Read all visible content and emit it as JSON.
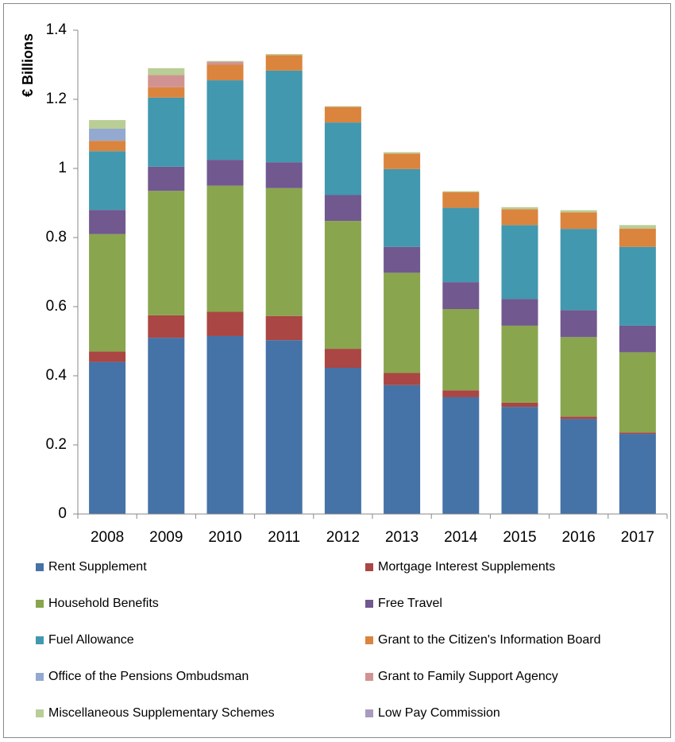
{
  "chart_data": {
    "type": "stacked_bar",
    "y_label": "€ Billions",
    "categories": [
      "2008",
      "2009",
      "2010",
      "2011",
      "2012",
      "2013",
      "2014",
      "2015",
      "2016",
      "2017"
    ],
    "ylim": [
      0,
      1.4
    ],
    "yticks": [
      0,
      0.2,
      0.4,
      0.6,
      0.8,
      1,
      1.2,
      1.4
    ],
    "series": [
      {
        "name": "Rent Supplement",
        "color": "#4572a7",
        "values": [
          0.44,
          0.51,
          0.515,
          0.503,
          0.423,
          0.373,
          0.338,
          0.31,
          0.275,
          0.232
        ]
      },
      {
        "name": "Mortgage Interest Supplements",
        "color": "#aa4643",
        "values": [
          0.03,
          0.065,
          0.07,
          0.07,
          0.055,
          0.035,
          0.02,
          0.012,
          0.007,
          0.004
        ]
      },
      {
        "name": "Household Benefits",
        "color": "#89a54e",
        "values": [
          0.34,
          0.36,
          0.365,
          0.37,
          0.37,
          0.29,
          0.235,
          0.223,
          0.23,
          0.232
        ]
      },
      {
        "name": "Free Travel",
        "color": "#71588f",
        "values": [
          0.07,
          0.07,
          0.075,
          0.075,
          0.075,
          0.075,
          0.078,
          0.077,
          0.078,
          0.077
        ]
      },
      {
        "name": "Fuel Allowance",
        "color": "#4198af",
        "values": [
          0.17,
          0.2,
          0.23,
          0.265,
          0.21,
          0.225,
          0.215,
          0.214,
          0.235,
          0.228
        ]
      },
      {
        "name": "Grant to the Citizen's Information Board",
        "color": "#db843d",
        "values": [
          0.03,
          0.03,
          0.045,
          0.045,
          0.045,
          0.045,
          0.045,
          0.046,
          0.048,
          0.053
        ]
      },
      {
        "name": "Office of the Pensions Ombudsman",
        "color": "#93a9cf",
        "values": [
          0.035,
          0,
          0,
          0,
          0,
          0,
          0,
          0,
          0,
          0
        ]
      },
      {
        "name": "Grant to Family Support Agency",
        "color": "#d19392",
        "values": [
          0,
          0.035,
          0.008,
          0,
          0,
          0,
          0,
          0,
          0,
          0
        ]
      },
      {
        "name": "Miscellaneous Supplementary Schemes",
        "color": "#b9cd96",
        "values": [
          0.025,
          0.02,
          0.003,
          0.003,
          0.002,
          0.004,
          0.003,
          0.006,
          0.006,
          0.01
        ]
      },
      {
        "name": "Low Pay Commission",
        "color": "#a99bbd",
        "values": [
          0,
          0,
          0,
          0,
          0,
          0,
          0,
          0,
          0,
          0
        ]
      }
    ]
  }
}
